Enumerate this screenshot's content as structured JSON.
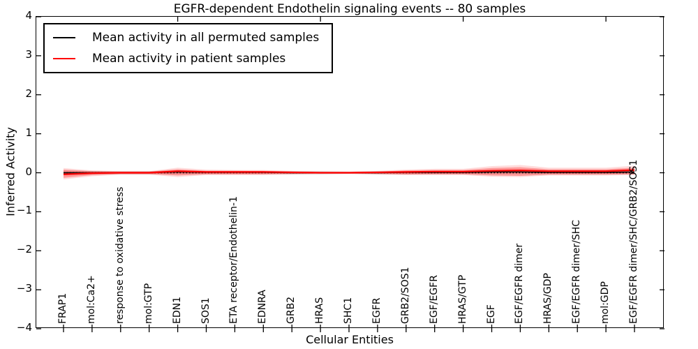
{
  "title": "EGFR-dependent Endothelin signaling events -- 80 samples",
  "y_axis": {
    "label": "Inferred Activity",
    "ticks": [
      "4",
      "3",
      "2",
      "1",
      "0",
      "−1",
      "−2",
      "−3",
      "−4"
    ]
  },
  "x_axis": {
    "label": "Cellular Entities"
  },
  "legend": {
    "items": [
      {
        "label": "Mean activity in all permuted samples",
        "color": "#000000"
      },
      {
        "label": "Mean activity in patient samples",
        "color": "#ff0000"
      }
    ]
  },
  "chart_data": {
    "type": "line",
    "title": "EGFR-dependent Endothelin signaling events -- 80 samples",
    "xlabel": "Cellular Entities",
    "ylabel": "Inferred Activity",
    "ylim": [
      -4,
      4
    ],
    "grid": false,
    "legend_position": "upper left",
    "zero_line": {
      "style": "dotted",
      "color": "#000000",
      "y": 0
    },
    "categories": [
      "FRAP1",
      "mol:Ca2+",
      "response to oxidative stress",
      "mol:GTP",
      "EDN1",
      "SOS1",
      "ETA receptor/Endothelin-1",
      "EDNRA",
      "GRB2",
      "HRAS",
      "SHC1",
      "EGFR",
      "GRB2/SOS1",
      "EGF/EGFR",
      "HRAS/GTP",
      "EGF",
      "EGF/EGFR dimer",
      "HRAS/GDP",
      "EGF/EGFR dimer/SHC",
      "mol:GDP",
      "EGF/EGFR dimer/SHC/GRB2/SOS1"
    ],
    "series": [
      {
        "name": "Mean activity in all permuted samples",
        "color": "#000000",
        "values": [
          0.0,
          0.0,
          0.0,
          0.0,
          0.02,
          0.01,
          0.01,
          0.01,
          0.0,
          0.0,
          0.0,
          0.0,
          0.01,
          0.01,
          0.01,
          0.02,
          0.02,
          0.01,
          0.01,
          0.01,
          0.02
        ]
      },
      {
        "name": "Mean activity in patient samples",
        "color": "#ff0000",
        "values": [
          -0.04,
          -0.01,
          0.0,
          0.0,
          0.04,
          0.02,
          0.02,
          0.02,
          0.01,
          0.0,
          0.0,
          0.01,
          0.02,
          0.03,
          0.03,
          0.05,
          0.06,
          0.04,
          0.04,
          0.04,
          0.07
        ]
      }
    ],
    "bands": [
      {
        "name": "permuted-std-band",
        "color": "#999999",
        "opacity": 0.4,
        "upper": [
          0.05,
          0.04,
          0.04,
          0.04,
          0.06,
          0.05,
          0.05,
          0.04,
          0.04,
          0.04,
          0.03,
          0.04,
          0.04,
          0.05,
          0.05,
          0.06,
          0.06,
          0.05,
          0.05,
          0.05,
          0.06
        ],
        "lower": [
          -0.05,
          -0.04,
          -0.04,
          -0.04,
          -0.03,
          -0.03,
          -0.03,
          -0.03,
          -0.04,
          -0.04,
          -0.03,
          -0.04,
          -0.04,
          -0.03,
          -0.03,
          -0.03,
          -0.03,
          -0.03,
          -0.03,
          -0.03,
          -0.03
        ]
      },
      {
        "name": "patient-std-outer-band",
        "color": "#ff0000",
        "opacity": 0.14,
        "upper": [
          0.12,
          0.06,
          0.04,
          0.04,
          0.13,
          0.08,
          0.07,
          0.07,
          0.05,
          0.03,
          0.03,
          0.05,
          0.08,
          0.1,
          0.1,
          0.17,
          0.2,
          0.13,
          0.13,
          0.13,
          0.18
        ],
        "lower": [
          -0.17,
          -0.09,
          -0.05,
          -0.05,
          -0.11,
          -0.06,
          -0.06,
          -0.06,
          -0.04,
          -0.03,
          -0.03,
          -0.04,
          -0.06,
          -0.06,
          -0.06,
          -0.1,
          -0.11,
          -0.07,
          -0.07,
          -0.07,
          -0.06
        ]
      },
      {
        "name": "patient-std-band",
        "color": "#ff0000",
        "opacity": 0.3,
        "upper": [
          0.08,
          0.04,
          0.03,
          0.03,
          0.09,
          0.05,
          0.05,
          0.05,
          0.03,
          0.02,
          0.02,
          0.03,
          0.06,
          0.07,
          0.07,
          0.12,
          0.14,
          0.09,
          0.09,
          0.09,
          0.13
        ],
        "lower": [
          -0.13,
          -0.06,
          -0.03,
          -0.03,
          -0.07,
          -0.04,
          -0.04,
          -0.04,
          -0.03,
          -0.02,
          -0.02,
          -0.03,
          -0.04,
          -0.04,
          -0.04,
          -0.07,
          -0.08,
          -0.05,
          -0.05,
          -0.05,
          -0.04
        ]
      }
    ]
  }
}
